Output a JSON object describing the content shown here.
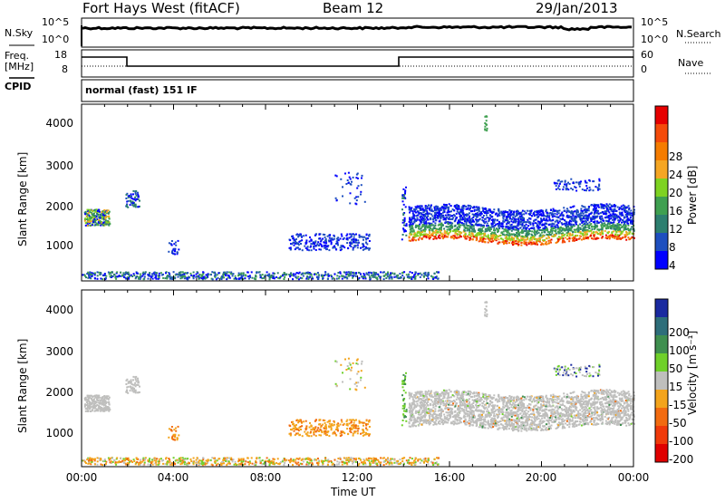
{
  "header": {
    "radar_title": "Fort Hays West (fitACF)",
    "beam": "Beam 12",
    "date": "29/Jan/2013"
  },
  "top_panels": {
    "nsky_label": "N.Sky",
    "nsky_ticks": [
      "10^5",
      "10^0"
    ],
    "nsearch_label": "N.Search",
    "nsearch_ticks": [
      "10^5",
      "10^0"
    ],
    "freq_label_1": "Freq.",
    "freq_label_2": "[MHz]",
    "freq_ticks": [
      "18",
      "8"
    ],
    "nave_label": "Nave",
    "nave_ticks": [
      "60",
      "0"
    ],
    "cpid_label": "CPID",
    "cpid_text": "normal (fast) 151 IF"
  },
  "colors": {
    "power_scale": [
      "#0000ff",
      "#1e4fbf",
      "#2d7f6f",
      "#3fa050",
      "#7ed321",
      "#f5a623",
      "#f57c00",
      "#f44b0a",
      "#e60000"
    ],
    "velocity_scale": [
      "#1a2aa0",
      "#2e6e7a",
      "#3f8f4f",
      "#6fd02a",
      "#bfbfbd",
      "#f3a41c",
      "#f26b10",
      "#f03a0a",
      "#e00000"
    ]
  },
  "chart_data": [
    {
      "type": "heatmap",
      "name": "power",
      "ylabel": "Slant Range [km]",
      "yticks": [
        "4000",
        "3000",
        "2000",
        "1000"
      ],
      "xticks": [
        "00:00",
        "04:00",
        "08:00",
        "12:00",
        "16:00",
        "20:00",
        "00:00"
      ],
      "colorbar_label": "Power [dB]",
      "colorbar_ticks": [
        "28",
        "24",
        "20",
        "16",
        "12",
        "8",
        "4"
      ],
      "ylim": [
        180,
        4500
      ],
      "xlim_hours": [
        0,
        24
      ],
      "echo_regions_hours_km": [
        {
          "t0": 0.0,
          "t1": 1.2,
          "r0": 1550,
          "r1": 1950,
          "level": "mid"
        },
        {
          "t0": 1.9,
          "t1": 2.5,
          "r0": 2000,
          "r1": 2400,
          "level": "low"
        },
        {
          "t0": 3.8,
          "t1": 4.1,
          "r0": 900,
          "r1": 1200,
          "level": "low"
        },
        {
          "t0": 9.0,
          "t1": 12.5,
          "r0": 950,
          "r1": 1350,
          "level": "low"
        },
        {
          "t0": 14.2,
          "t1": 24.0,
          "r0": 1050,
          "r1": 2000,
          "level": "band"
        },
        {
          "t0": 0.0,
          "t1": 15.0,
          "r0": 250,
          "r1": 400,
          "level": "ground"
        }
      ]
    },
    {
      "type": "heatmap",
      "name": "velocity",
      "ylabel": "Slant Range [km]",
      "yticks": [
        "4000",
        "3000",
        "2000",
        "1000"
      ],
      "xticks": [
        "00:00",
        "04:00",
        "08:00",
        "12:00",
        "16:00",
        "20:00",
        "00:00"
      ],
      "xlabel": "Time UT",
      "colorbar_label": "Velocity [m s⁻¹]",
      "colorbar_ticks": [
        "200",
        "100",
        "50",
        "15",
        "-15",
        "-50",
        "-100",
        "-200"
      ],
      "ylim": [
        180,
        4500
      ],
      "xlim_hours": [
        0,
        24
      ]
    }
  ]
}
